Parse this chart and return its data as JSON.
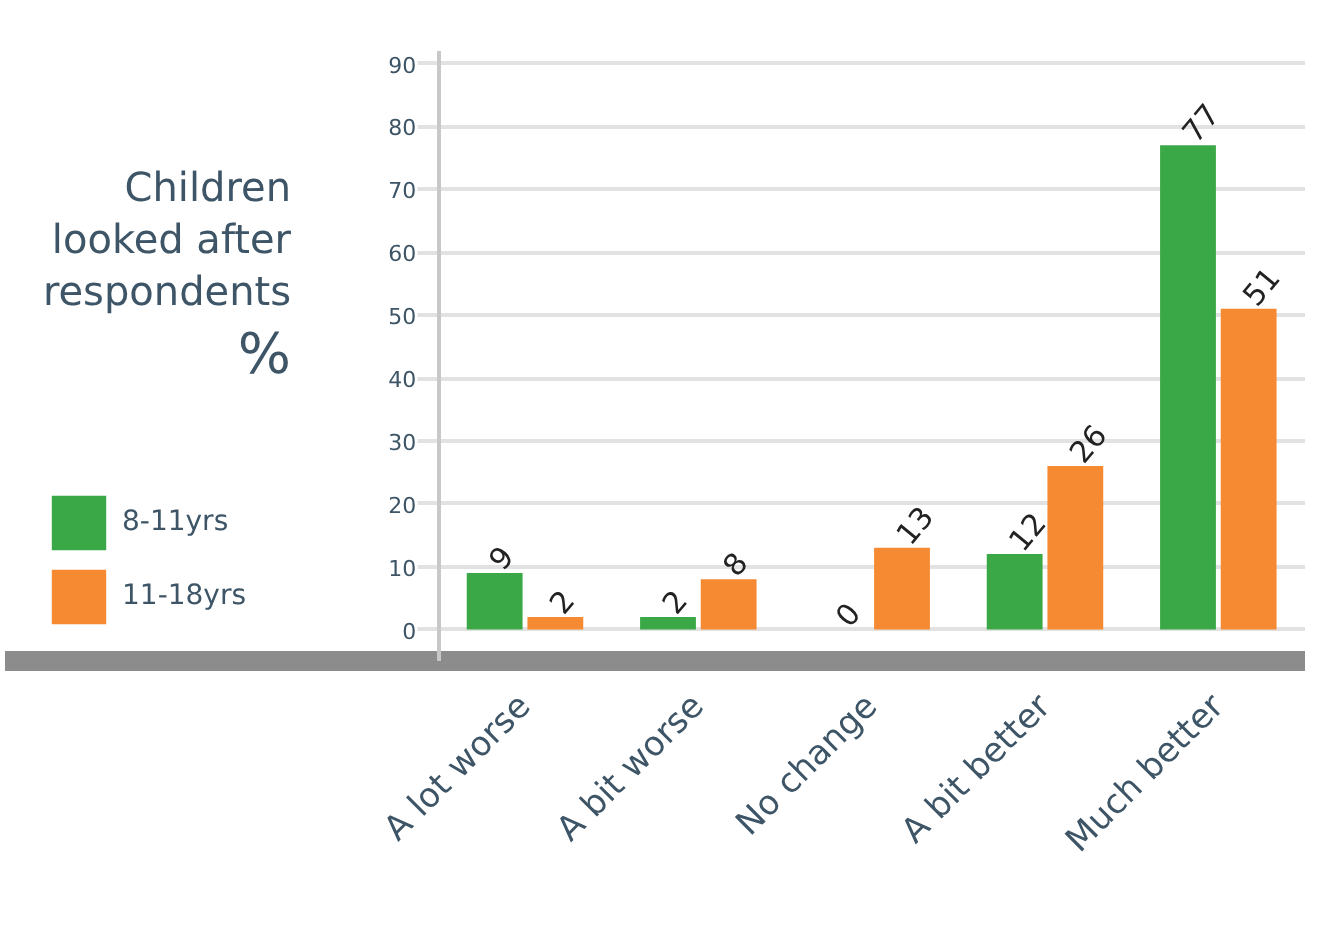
{
  "chart_data": {
    "type": "bar",
    "title": "Children looked after respondents",
    "ylabel": "%",
    "categories": [
      "A lot worse",
      "A bit worse",
      "No change",
      "A bit better",
      "Much better"
    ],
    "series": [
      {
        "name": "8-11yrs",
        "color": "#3aa846",
        "values": [
          9,
          2,
          0,
          12,
          77
        ]
      },
      {
        "name": "11-18yrs",
        "color": "#f58a33",
        "values": [
          2,
          8,
          13,
          26,
          51
        ]
      }
    ],
    "ylim": [
      -5,
      92
    ],
    "yticks": [
      0,
      10,
      20,
      30,
      40,
      50,
      60,
      70,
      80,
      90
    ],
    "grid": "y",
    "legend": "left",
    "data_labels": true
  }
}
